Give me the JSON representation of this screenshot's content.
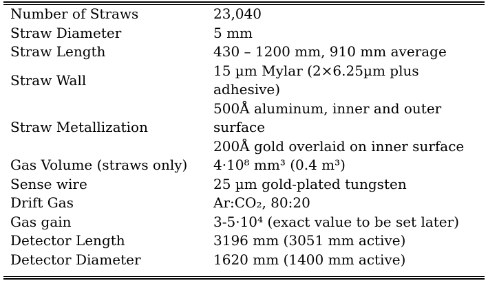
{
  "table": {
    "rows": [
      {
        "parameter": "Number of Straws",
        "value_lines": [
          "23,040"
        ]
      },
      {
        "parameter": "Straw Diameter",
        "value_lines": [
          "5 mm"
        ]
      },
      {
        "parameter": "Straw Length",
        "value_lines": [
          "430 – 1200 mm, 910 mm average"
        ]
      },
      {
        "parameter": "Straw Wall",
        "value_lines": [
          "15 µm Mylar (2×6.25µm plus",
          "adhesive)"
        ]
      },
      {
        "parameter": "Straw Metallization",
        "value_lines": [
          "500Å aluminum, inner and outer",
          "surface",
          "200Å gold overlaid on inner surface"
        ]
      },
      {
        "parameter": "Gas Volume (straws only)",
        "value_lines": [
          "4·10⁸ mm³ (0.4 m³)"
        ]
      },
      {
        "parameter": "Sense wire",
        "value_lines": [
          "25 µm gold-plated tungsten"
        ]
      },
      {
        "parameter": "Drift Gas",
        "value_lines": [
          "Ar:CO₂, 80:20"
        ]
      },
      {
        "parameter": "Gas gain",
        "value_lines": [
          "3-5·10⁴ (exact value to be set later)"
        ]
      },
      {
        "parameter": "Detector Length",
        "value_lines": [
          "3196 mm (3051 mm active)"
        ]
      },
      {
        "parameter": "Detector Diameter",
        "value_lines": [
          "1620 mm (1400 mm active)"
        ]
      }
    ]
  }
}
